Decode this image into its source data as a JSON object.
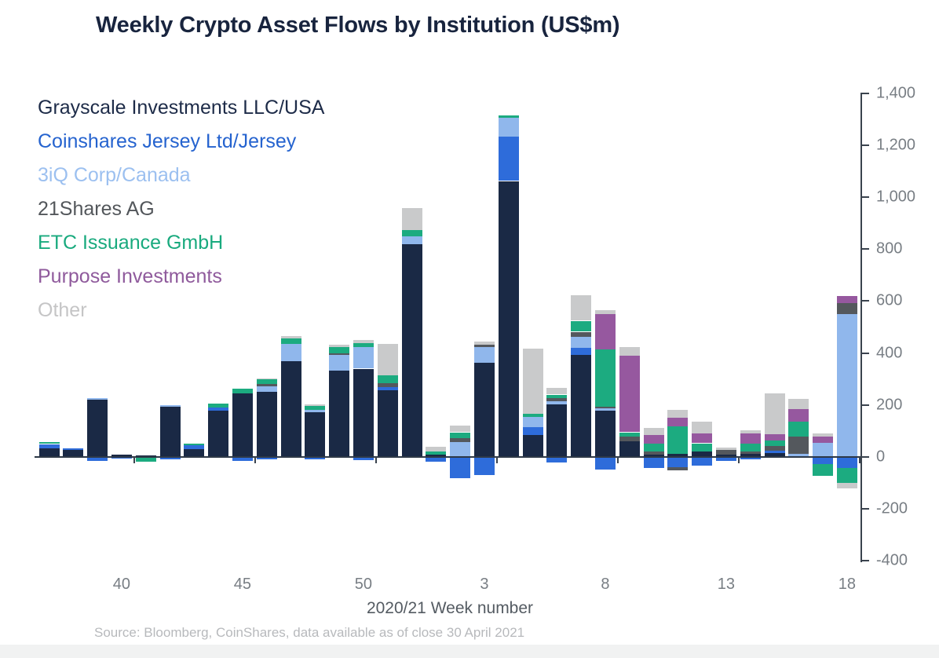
{
  "title": "Weekly Crypto Asset Flows by Institution (US$m)",
  "source": "Source: Bloomberg, CoinShares, data available as of close 30 April 2021",
  "x_axis": {
    "label": "2020/21 Week number",
    "tick_labels": [
      "40",
      "45",
      "50",
      "3",
      "8",
      "13",
      "18"
    ]
  },
  "y_axis": {
    "tick_labels": [
      "1,400",
      "1,200",
      "1,000",
      "800",
      "600",
      "400",
      "200",
      "0",
      "-200",
      "-400"
    ],
    "min": -400,
    "max": 1400,
    "step": 200
  },
  "legend": [
    {
      "label": "Grayscale Investments LLC/USA",
      "color": "#1d2b48"
    },
    {
      "label": "Coinshares Jersey Ltd/Jersey",
      "color": "#2563cf"
    },
    {
      "label": "3iQ Corp/Canada",
      "color": "#9cc0f0"
    },
    {
      "label": "21Shares AG",
      "color": "#53575b"
    },
    {
      "label": "ETC Issuance GmbH",
      "color": "#19aa7e"
    },
    {
      "label": "Purpose Investments",
      "color": "#8f5a9c"
    },
    {
      "label": "Other",
      "color": "#c5c5c6"
    }
  ],
  "chart_data": {
    "type": "bar",
    "stacked": true,
    "title": "Weekly Crypto Asset Flows by Institution (US$m)",
    "xlabel": "2020/21 Week number",
    "ylabel": "US$m",
    "ylim": [
      -400,
      1400
    ],
    "grid": false,
    "legend_position": "top-left",
    "y_axis_side": "right",
    "x_tick_weeks": [
      "40",
      "45",
      "50",
      "3",
      "8",
      "13",
      "18"
    ],
    "series_order": [
      "grayscale",
      "coinshares",
      "threeiq",
      "twentyone_shares",
      "etc_issuance",
      "purpose",
      "other"
    ],
    "series_names": {
      "grayscale": "Grayscale Investments LLC/USA",
      "coinshares": "Coinshares Jersey Ltd/Jersey",
      "threeiq": "3iQ Corp/Canada",
      "twentyone_shares": "21Shares AG",
      "etc_issuance": "ETC Issuance GmbH",
      "purpose": "Purpose Investments",
      "other": "Other"
    },
    "series_colors": {
      "grayscale": "#1a2945",
      "coinshares": "#2e6cda",
      "threeiq": "#90b7ec",
      "twentyone_shares": "#54585d",
      "etc_issuance": "#1cab80",
      "purpose": "#96589f",
      "other": "#c9cacb"
    },
    "categories": [
      "37",
      "38",
      "39",
      "40",
      "41",
      "42",
      "43",
      "44",
      "45",
      "46",
      "47",
      "48",
      "49",
      "50",
      "51",
      "52",
      "1",
      "2",
      "3",
      "4",
      "5",
      "6",
      "7",
      "8",
      "9",
      "10",
      "11",
      "12",
      "13",
      "14",
      "15",
      "16",
      "17",
      "18"
    ],
    "bars": [
      {
        "week": "37",
        "grayscale": 33,
        "coinshares": 17,
        "threeiq": 0,
        "twentyone_shares": 0,
        "etc_issuance": 7,
        "purpose": 0,
        "other": 0
      },
      {
        "week": "38",
        "grayscale": 27,
        "coinshares": 6,
        "threeiq": 0,
        "twentyone_shares": 0,
        "etc_issuance": 0,
        "purpose": 0,
        "other": 0
      },
      {
        "week": "39",
        "grayscale": 220,
        "coinshares": -15,
        "threeiq": 8,
        "twentyone_shares": 0,
        "etc_issuance": 0,
        "purpose": 0,
        "other": 0
      },
      {
        "week": "40",
        "grayscale": 10,
        "coinshares": -7,
        "threeiq": 0,
        "twentyone_shares": 0,
        "etc_issuance": 0,
        "purpose": 0,
        "other": 0
      },
      {
        "week": "41",
        "grayscale": 5,
        "coinshares": 0,
        "threeiq": 0,
        "twentyone_shares": 0,
        "etc_issuance": -17,
        "purpose": 0,
        "other": 0
      },
      {
        "week": "42",
        "grayscale": 194,
        "coinshares": -10,
        "threeiq": 7,
        "twentyone_shares": 0,
        "etc_issuance": 0,
        "purpose": 0,
        "other": 0
      },
      {
        "week": "43",
        "grayscale": 30,
        "coinshares": 15,
        "threeiq": 0,
        "twentyone_shares": 0,
        "etc_issuance": 8,
        "purpose": 0,
        "other": 0
      },
      {
        "week": "44",
        "grayscale": 177,
        "coinshares": 13,
        "threeiq": 0,
        "twentyone_shares": 0,
        "etc_issuance": 17,
        "purpose": 0,
        "other": 0
      },
      {
        "week": "45",
        "grayscale": 244,
        "coinshares": -15,
        "threeiq": 0,
        "twentyone_shares": 0,
        "etc_issuance": 18,
        "purpose": 0,
        "other": 0
      },
      {
        "week": "46",
        "grayscale": 250,
        "coinshares": -8,
        "threeiq": 23,
        "twentyone_shares": 7,
        "etc_issuance": 18,
        "purpose": 0,
        "other": 5
      },
      {
        "week": "47",
        "grayscale": 370,
        "coinshares": 0,
        "threeiq": 65,
        "twentyone_shares": 0,
        "etc_issuance": 20,
        "purpose": 0,
        "other": 10
      },
      {
        "week": "48",
        "grayscale": 172,
        "coinshares": -8,
        "threeiq": 10,
        "twentyone_shares": 0,
        "etc_issuance": 15,
        "purpose": 0,
        "other": 5
      },
      {
        "week": "49",
        "grayscale": 332,
        "coinshares": 0,
        "threeiq": 60,
        "twentyone_shares": 6,
        "etc_issuance": 24,
        "purpose": 0,
        "other": 10
      },
      {
        "week": "50",
        "grayscale": 340,
        "coinshares": -12,
        "threeiq": 84,
        "twentyone_shares": 0,
        "etc_issuance": 13,
        "purpose": 0,
        "other": 12
      },
      {
        "week": "51",
        "grayscale": 257,
        "coinshares": 13,
        "threeiq": 0,
        "twentyone_shares": 14,
        "etc_issuance": 30,
        "purpose": 0,
        "other": 120
      },
      {
        "week": "52",
        "grayscale": 819,
        "coinshares": 0,
        "threeiq": 31,
        "twentyone_shares": 0,
        "etc_issuance": 22,
        "purpose": 0,
        "other": 85
      },
      {
        "week": "1",
        "grayscale": 10,
        "coinshares": -18,
        "threeiq": 0,
        "twentyone_shares": 0,
        "etc_issuance": 10,
        "purpose": 0,
        "other": 20
      },
      {
        "week": "2",
        "grayscale": 0,
        "coinshares": -80,
        "threeiq": 58,
        "twentyone_shares": 14,
        "etc_issuance": 23,
        "purpose": 0,
        "other": 27
      },
      {
        "week": "3",
        "grayscale": 364,
        "coinshares": -70,
        "threeiq": 60,
        "twentyone_shares": 8,
        "etc_issuance": 0,
        "purpose": 0,
        "other": 12
      },
      {
        "week": "4",
        "grayscale": 1062,
        "coinshares": 170,
        "threeiq": 73,
        "twentyone_shares": 0,
        "etc_issuance": 10,
        "purpose": 0,
        "other": 0
      },
      {
        "week": "5",
        "grayscale": 85,
        "coinshares": 30,
        "threeiq": 40,
        "twentyone_shares": 0,
        "etc_issuance": 12,
        "purpose": 0,
        "other": 250
      },
      {
        "week": "6",
        "grayscale": 202,
        "coinshares": -20,
        "threeiq": 12,
        "twentyone_shares": 13,
        "etc_issuance": 13,
        "purpose": 0,
        "other": 27
      },
      {
        "week": "7",
        "grayscale": 394,
        "coinshares": 26,
        "threeiq": 44,
        "twentyone_shares": 18,
        "etc_issuance": 42,
        "purpose": 0,
        "other": 98
      },
      {
        "week": "8",
        "grayscale": 178,
        "coinshares": -48,
        "threeiq": 8,
        "twentyone_shares": 8,
        "etc_issuance": 220,
        "purpose": 136,
        "other": 14
      },
      {
        "week": "9",
        "grayscale": 60,
        "coinshares": 0,
        "threeiq": 0,
        "twentyone_shares": 20,
        "etc_issuance": 15,
        "purpose": 295,
        "other": 33
      },
      {
        "week": "10",
        "grayscale": 10,
        "coinshares": -43,
        "threeiq": 0,
        "twentyone_shares": 10,
        "etc_issuance": 32,
        "purpose": 32,
        "other": 28
      },
      {
        "week": "11",
        "grayscale": 12,
        "coinshares": -40,
        "threeiq": 0,
        "twentyone_shares": -12,
        "etc_issuance": 105,
        "purpose": 35,
        "other": 29
      },
      {
        "week": "12",
        "grayscale": 20,
        "coinshares": -32,
        "threeiq": 0,
        "twentyone_shares": 0,
        "etc_issuance": 33,
        "purpose": 37,
        "other": 46
      },
      {
        "week": "13",
        "grayscale": 8,
        "coinshares": -15,
        "threeiq": 0,
        "twentyone_shares": 20,
        "etc_issuance": 0,
        "purpose": 0,
        "other": 8
      },
      {
        "week": "14",
        "grayscale": 12,
        "coinshares": -10,
        "threeiq": 0,
        "twentyone_shares": 10,
        "etc_issuance": 30,
        "purpose": 40,
        "other": 12
      },
      {
        "week": "15",
        "grayscale": 14,
        "coinshares": 10,
        "threeiq": 0,
        "twentyone_shares": 18,
        "etc_issuance": 22,
        "purpose": 23,
        "other": 157
      },
      {
        "week": "16",
        "grayscale": 4,
        "coinshares": 0,
        "threeiq": 8,
        "twentyone_shares": 68,
        "etc_issuance": 57,
        "purpose": 47,
        "other": 40
      },
      {
        "week": "17",
        "grayscale": 0,
        "coinshares": -28,
        "threeiq": 55,
        "twentyone_shares": 0,
        "etc_issuance": -45,
        "purpose": 24,
        "other": 12
      },
      {
        "week": "18",
        "grayscale": 0,
        "coinshares": -43,
        "threeiq": 550,
        "twentyone_shares": 43,
        "etc_issuance": -58,
        "purpose": 27,
        "other": -20
      }
    ]
  }
}
